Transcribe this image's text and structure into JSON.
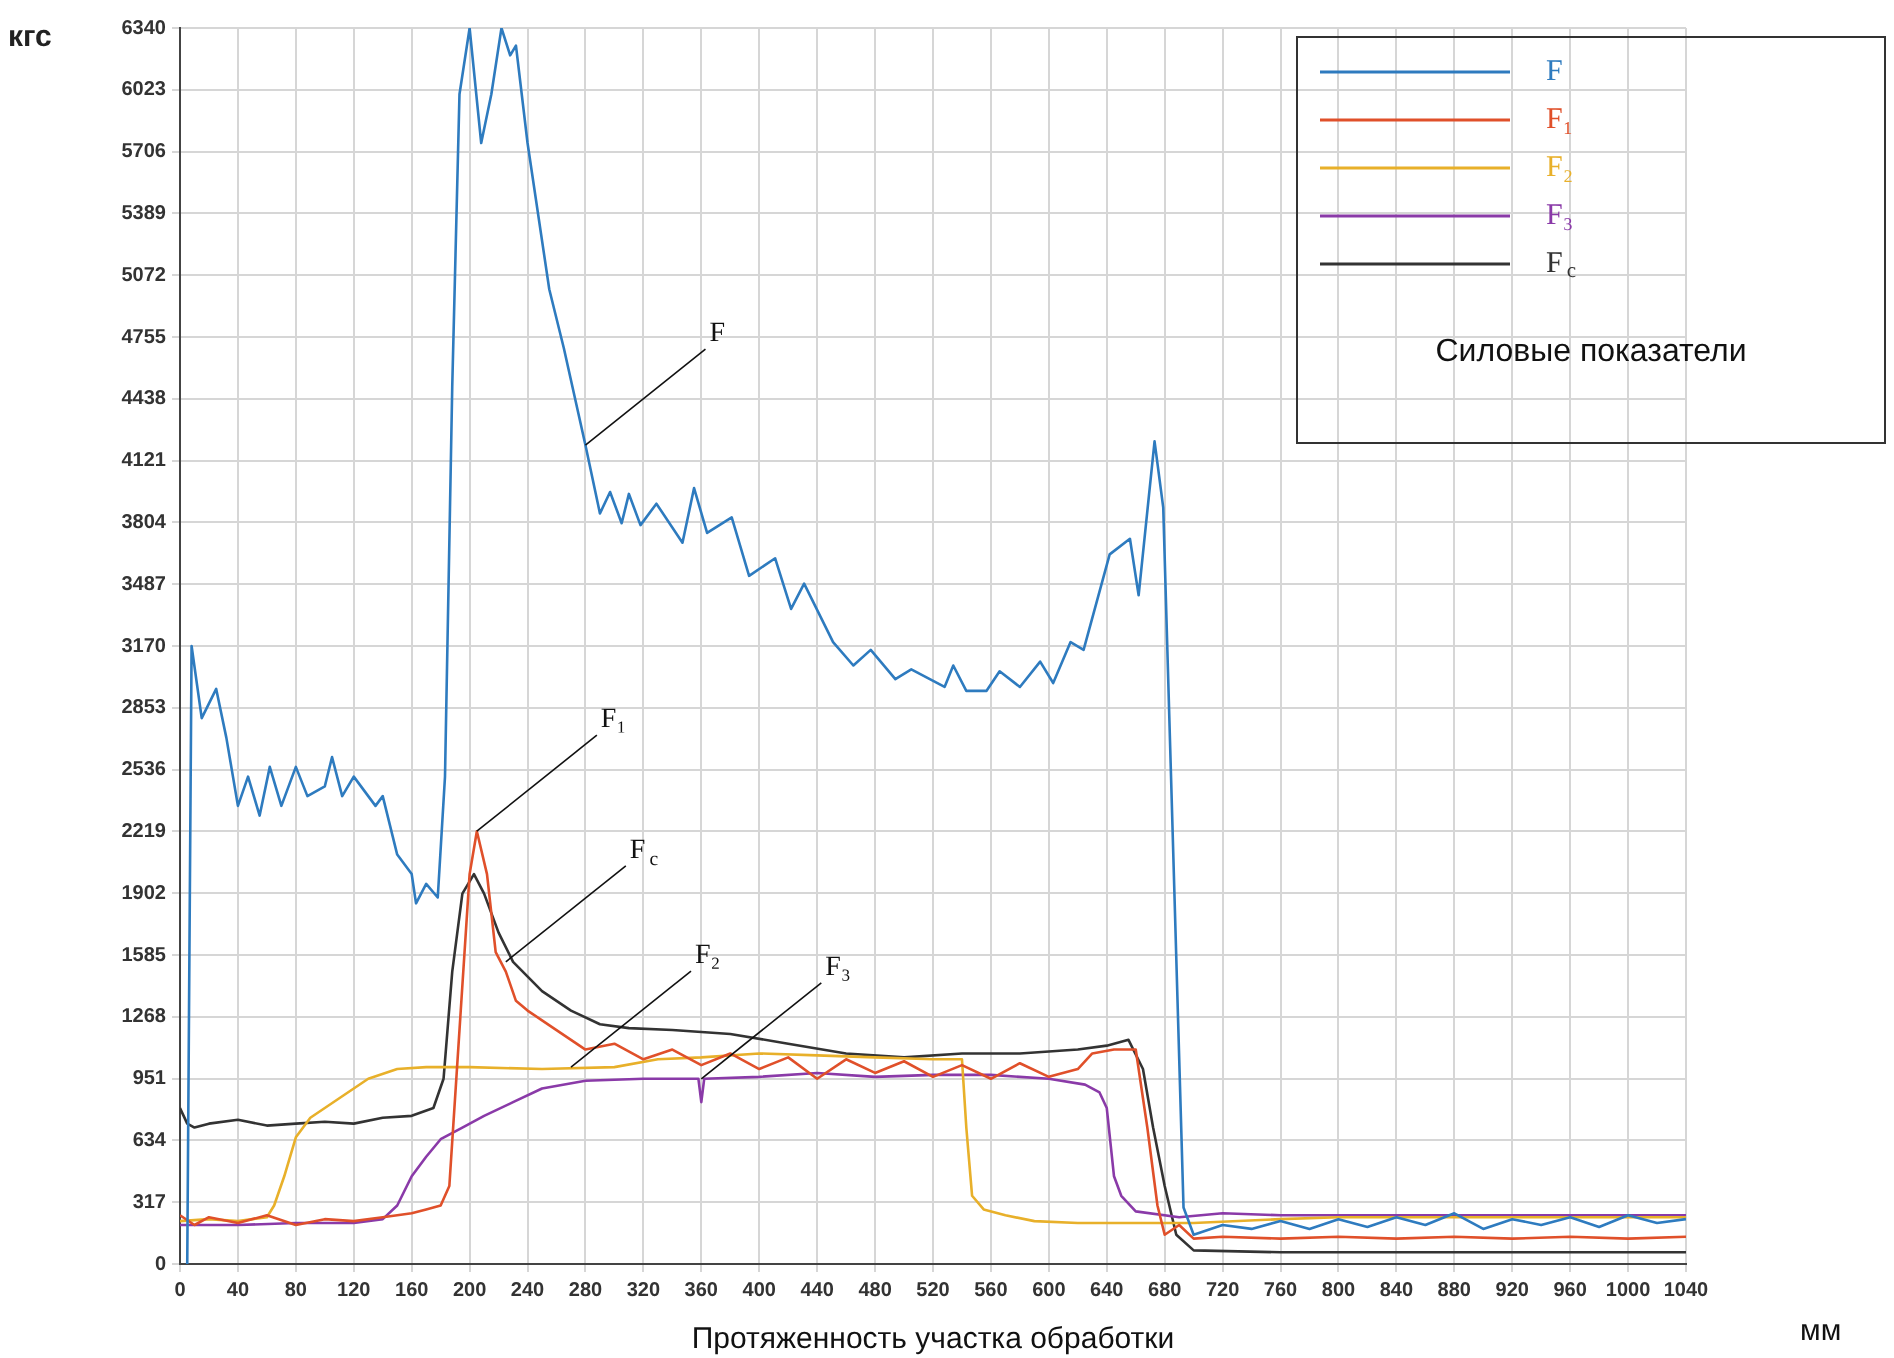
{
  "chart_data": {
    "type": "line",
    "xlabel": "Протяженность участка обработки",
    "ylabel": "кгс",
    "legend_title": "Силовые показатели",
    "legend": "top right",
    "grid": true,
    "marker": "none",
    "line_style": "solid",
    "xlim": [
      0,
      1040
    ],
    "xticks": [
      0,
      40,
      80,
      120,
      160,
      200,
      240,
      280,
      320,
      360,
      400,
      440,
      480,
      520,
      560,
      600,
      640,
      680,
      720,
      760,
      800,
      840,
      880,
      920,
      960,
      1000,
      1040
    ],
    "ylim": [
      0,
      6340
    ],
    "yticks": [
      0,
      317,
      634,
      951,
      1268,
      1585,
      1902,
      2219,
      2536,
      2853,
      3170,
      3487,
      3804,
      4121,
      4438,
      4755,
      5072,
      5389,
      5706,
      6023,
      6340
    ],
    "series": [
      {
        "name": "F",
        "color": "#2e7bbf",
        "x": [
          5,
          8,
          15,
          25,
          32,
          40,
          47,
          55,
          62,
          70,
          80,
          88,
          100,
          105,
          112,
          120,
          135,
          140,
          150,
          160,
          163,
          170,
          178,
          183,
          188,
          193,
          200,
          208,
          215,
          222,
          228,
          232,
          240,
          255,
          265,
          280,
          290,
          297,
          305,
          310,
          318,
          329,
          347,
          355,
          364,
          381,
          393,
          411,
          422,
          431,
          451,
          465,
          477,
          494,
          505,
          528,
          534,
          543,
          557,
          566,
          580,
          594,
          603,
          615,
          624,
          642,
          656,
          662,
          673,
          679,
          693,
          700,
          720,
          740,
          760,
          780,
          800,
          820,
          840,
          860,
          880,
          900,
          920,
          940,
          960,
          980,
          1000,
          1020,
          1040
        ],
        "values": [
          0,
          3170,
          2800,
          2950,
          2700,
          2350,
          2500,
          2300,
          2550,
          2350,
          2550,
          2400,
          2450,
          2600,
          2400,
          2500,
          2350,
          2400,
          2100,
          2000,
          1850,
          1950,
          1880,
          2500,
          4500,
          6000,
          6340,
          5750,
          6000,
          6340,
          6200,
          6250,
          5750,
          5000,
          4700,
          4200,
          3850,
          3960,
          3800,
          3950,
          3790,
          3900,
          3700,
          3980,
          3750,
          3830,
          3530,
          3620,
          3360,
          3490,
          3190,
          3070,
          3150,
          3000,
          3050,
          2960,
          3070,
          2940,
          2940,
          3040,
          2960,
          3090,
          2980,
          3190,
          3150,
          3640,
          3720,
          3430,
          4220,
          3880,
          290,
          150,
          200,
          180,
          220,
          180,
          230,
          190,
          240,
          200,
          260,
          180,
          230,
          200,
          240,
          190,
          250,
          210,
          230
        ]
      },
      {
        "name": "F₁",
        "color": "#e0502a",
        "x": [
          0,
          10,
          20,
          40,
          60,
          80,
          100,
          120,
          140,
          160,
          170,
          180,
          186,
          193,
          200,
          205,
          212,
          218,
          225,
          232,
          240,
          250,
          260,
          280,
          300,
          320,
          340,
          360,
          380,
          400,
          420,
          440,
          460,
          480,
          500,
          520,
          540,
          560,
          580,
          600,
          620,
          630,
          645,
          660,
          668,
          675,
          680,
          690,
          700,
          720,
          760,
          800,
          840,
          880,
          920,
          960,
          1000,
          1040
        ],
        "values": [
          250,
          200,
          240,
          210,
          250,
          200,
          230,
          220,
          240,
          260,
          280,
          300,
          400,
          1200,
          2000,
          2220,
          2000,
          1600,
          1500,
          1350,
          1300,
          1250,
          1200,
          1100,
          1130,
          1050,
          1100,
          1020,
          1080,
          1000,
          1060,
          950,
          1050,
          980,
          1040,
          960,
          1020,
          950,
          1030,
          960,
          1000,
          1080,
          1100,
          1100,
          700,
          300,
          150,
          200,
          130,
          140,
          130,
          140,
          130,
          140,
          130,
          140,
          130,
          140
        ]
      },
      {
        "name": "F₂",
        "color": "#e8b02a",
        "x": [
          0,
          20,
          40,
          60,
          65,
          72,
          80,
          90,
          110,
          130,
          150,
          170,
          200,
          250,
          300,
          330,
          360,
          400,
          440,
          480,
          520,
          540,
          543,
          547,
          555,
          570,
          590,
          620,
          660,
          700,
          760,
          800,
          900,
          1040
        ],
        "values": [
          220,
          230,
          220,
          240,
          300,
          450,
          650,
          750,
          850,
          950,
          1000,
          1010,
          1010,
          1000,
          1010,
          1050,
          1060,
          1080,
          1070,
          1060,
          1050,
          1050,
          700,
          350,
          280,
          250,
          220,
          210,
          210,
          210,
          230,
          240,
          240,
          240
        ]
      },
      {
        "name": "F₃",
        "color": "#8a3aa8",
        "x": [
          0,
          40,
          80,
          120,
          140,
          150,
          160,
          170,
          180,
          195,
          210,
          230,
          250,
          280,
          320,
          358,
          360,
          362,
          400,
          440,
          480,
          520,
          560,
          600,
          625,
          635,
          640,
          645,
          650,
          660,
          690,
          720,
          760,
          800,
          900,
          1040
        ],
        "values": [
          200,
          200,
          210,
          210,
          230,
          300,
          450,
          550,
          640,
          700,
          760,
          830,
          900,
          940,
          950,
          950,
          830,
          950,
          960,
          980,
          960,
          970,
          970,
          950,
          920,
          880,
          800,
          450,
          350,
          270,
          240,
          260,
          250,
          250,
          250,
          250
        ]
      },
      {
        "name": "F$_{c}$",
        "color": "#333333",
        "x": [
          0,
          5,
          10,
          20,
          40,
          60,
          80,
          100,
          120,
          140,
          160,
          175,
          182,
          188,
          195,
          203,
          210,
          220,
          230,
          250,
          270,
          290,
          310,
          340,
          380,
          420,
          460,
          500,
          540,
          580,
          620,
          640,
          655,
          665,
          672,
          680,
          688,
          700,
          760,
          1040
        ],
        "values": [
          800,
          720,
          700,
          720,
          740,
          710,
          720,
          730,
          720,
          750,
          760,
          800,
          950,
          1500,
          1900,
          2000,
          1900,
          1700,
          1550,
          1400,
          1300,
          1230,
          1210,
          1200,
          1180,
          1130,
          1080,
          1060,
          1080,
          1080,
          1100,
          1120,
          1150,
          1000,
          700,
          400,
          150,
          70,
          60,
          60
        ]
      }
    ],
    "annotations": [
      {
        "text": "F",
        "x": 280,
        "y": 4200
      },
      {
        "text": "F₁",
        "x": 205,
        "y": 2220
      },
      {
        "text": "F$_{c}$",
        "x": 225,
        "y": 1550
      },
      {
        "text": "F₂",
        "x": 270,
        "y": 1010
      },
      {
        "text": "F₃",
        "x": 360,
        "y": 950
      },
      "мм"
    ]
  }
}
